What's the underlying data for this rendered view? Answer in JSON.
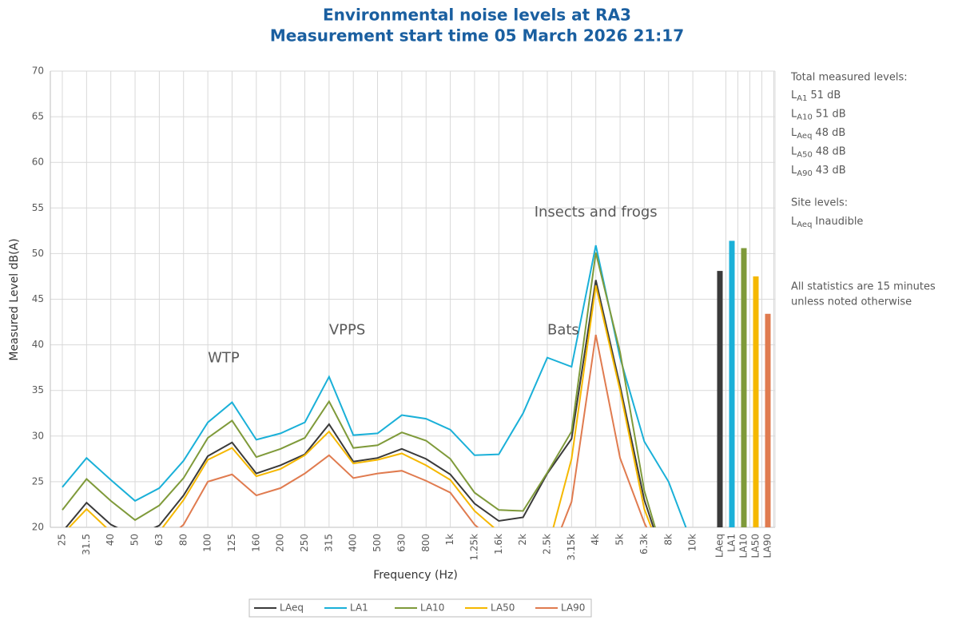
{
  "chart_data": {
    "type": "line",
    "title": [
      "Environmental noise levels at RA3",
      "Measurement start time 05 March 2026 21:17"
    ],
    "x_label": "Frequency (Hz)",
    "y_label": "Measured Level dB(A)",
    "categories": [
      "25",
      "31.5",
      "40",
      "50",
      "63",
      "80",
      "100",
      "125",
      "160",
      "200",
      "250",
      "315",
      "400",
      "500",
      "630",
      "800",
      "1k",
      "1.25k",
      "1.6k",
      "2k",
      "2.5k",
      "3.15k",
      "4k",
      "5k",
      "6.3k",
      "8k",
      "10k"
    ],
    "series": [
      {
        "name": "LAeq",
        "color": "#3a3a3a",
        "values": [
          19.5,
          22.7,
          20.3,
          19,
          20.2,
          23.5,
          27.8,
          29.3,
          25.9,
          26.8,
          28.0,
          31.3,
          27.2,
          27.6,
          28.6,
          27.5,
          25.8,
          22.6,
          20.7,
          21.1,
          25.9,
          29.7,
          47.1,
          35.5,
          23.0,
          15,
          null
        ]
      },
      {
        "name": "LA1",
        "color": "#1ab0d8",
        "values": [
          24.4,
          27.6,
          25.2,
          22.9,
          24.3,
          27.3,
          31.5,
          33.7,
          29.6,
          30.3,
          31.5,
          36.5,
          30.1,
          30.3,
          32.3,
          31.9,
          30.7,
          27.9,
          28.0,
          32.5,
          38.6,
          37.6,
          50.9,
          38.6,
          29.4,
          25.0,
          18
        ]
      },
      {
        "name": "LA10",
        "color": "#7f9a3a",
        "values": [
          21.9,
          25.3,
          22.9,
          20.8,
          22.4,
          25.4,
          29.8,
          31.7,
          27.7,
          28.6,
          29.8,
          33.8,
          28.7,
          29.0,
          30.4,
          29.5,
          27.5,
          23.8,
          21.9,
          21.8,
          26.0,
          30.5,
          50.1,
          39.2,
          24.0,
          15,
          null
        ]
      },
      {
        "name": "LA50",
        "color": "#f5b800",
        "values": [
          19.2,
          22.0,
          19.5,
          18,
          19.5,
          23.0,
          27.4,
          28.7,
          25.6,
          26.4,
          27.9,
          30.5,
          27.0,
          27.4,
          28.1,
          26.8,
          25.2,
          21.8,
          19.5,
          18,
          17.5,
          27.5,
          46.5,
          35,
          22,
          15,
          null
        ]
      },
      {
        "name": "LA90",
        "color": "#e07b4f",
        "values": [
          17,
          19,
          18,
          17,
          18,
          20.3,
          25.0,
          25.8,
          23.5,
          24.3,
          25.9,
          27.9,
          25.4,
          25.9,
          26.2,
          25.1,
          23.8,
          20.3,
          18,
          17,
          16,
          22.8,
          41.1,
          27.6,
          20.5,
          15,
          null
        ]
      }
    ],
    "bars": {
      "categories": [
        "LAeq",
        "LA1",
        "LA10",
        "LA50",
        "LA90"
      ],
      "values": [
        48.1,
        51.4,
        50.6,
        47.5,
        43.4
      ],
      "colors": [
        "#3a3a3a",
        "#1ab0d8",
        "#7f9a3a",
        "#f5b800",
        "#e07b4f"
      ]
    },
    "ylim": [
      20,
      70
    ],
    "yticks": [
      20,
      25,
      30,
      35,
      40,
      45,
      50,
      55,
      60,
      65,
      70
    ],
    "grid": true,
    "legend": "bottom",
    "annotations": [
      {
        "text": "WTP",
        "category": 6,
        "value": 38.5
      },
      {
        "text": "VPPS",
        "category": 11,
        "value": 41.6
      },
      {
        "text": "Bats",
        "category": 20,
        "value": 41.6
      },
      {
        "text": "Insects and frogs",
        "category": 22,
        "value": 54.5
      }
    ],
    "side_panel": {
      "heading": "Total measured levels:",
      "items": [
        {
          "symbol": "L",
          "sub": "A1",
          "value": "51 dB"
        },
        {
          "symbol": "L",
          "sub": "A10",
          "value": "51 dB"
        },
        {
          "symbol": "L",
          "sub": "Aeq",
          "value": "48 dB"
        },
        {
          "symbol": "L",
          "sub": "A50",
          "value": "48 dB"
        },
        {
          "symbol": "L",
          "sub": "A90",
          "value": "43 dB"
        }
      ],
      "site_heading": "Site levels:",
      "site_item": {
        "symbol": "L",
        "sub": "Aeq",
        "value": "Inaudible"
      },
      "note": [
        "All statistics are 15 minutes",
        "unless noted otherwise"
      ]
    }
  }
}
